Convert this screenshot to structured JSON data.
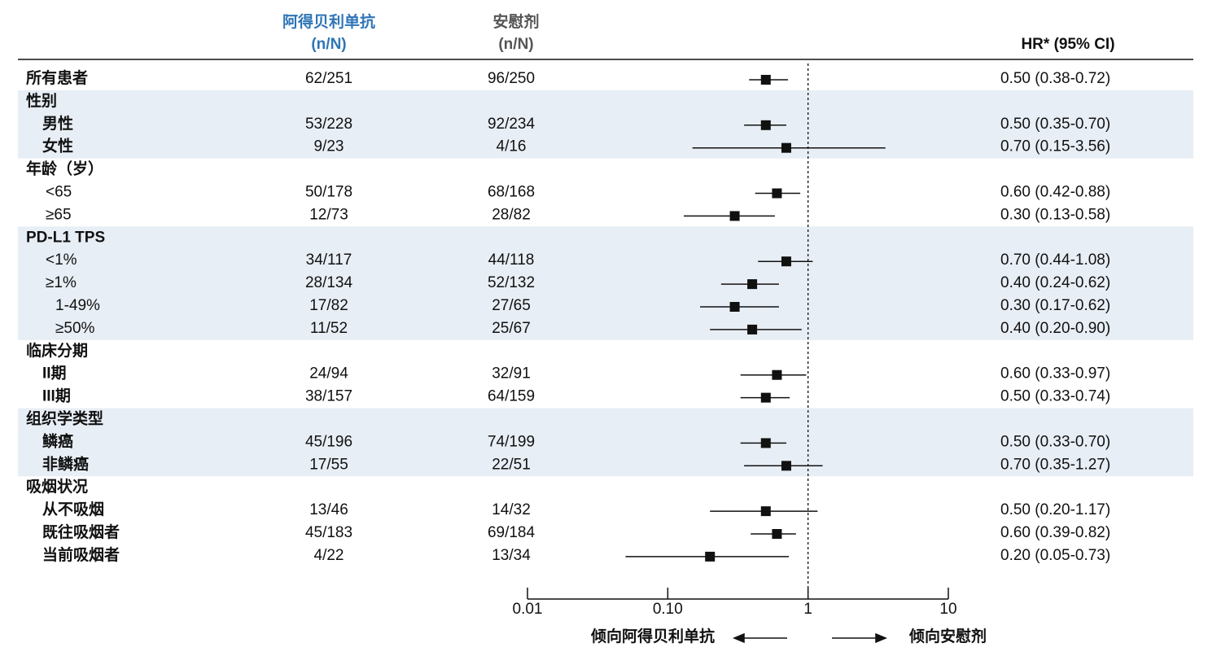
{
  "chart_data": {
    "type": "forest",
    "columns": [
      {
        "title": "阿得贝利单抗",
        "subtitle": "(n/N)",
        "color": "#2e75b6"
      },
      {
        "title": "安慰剂",
        "subtitle": "(n/N)",
        "color": "#555555"
      }
    ],
    "hr_header": "HR* (95% CI)",
    "xlim": [
      0.01,
      10
    ],
    "xticks": [
      0.01,
      {
        "value": 0.1,
        "label": "0.10"
      },
      1,
      10
    ],
    "log_x": true,
    "reference": 1,
    "left_note": "倾向阿得贝利单抗",
    "right_note": "倾向安慰剂",
    "shade_color": "#e8eef5",
    "subgroups": [
      {
        "label": "所有患者",
        "a": "62/251",
        "b": "96/250",
        "hr": 0.5,
        "lo": 0.38,
        "hi": 0.72,
        "hr_label": "0.50 (0.38-0.72)"
      },
      {
        "label": "性别",
        "rows": [
          {
            "label": "男性",
            "a": "53/228",
            "b": "92/234",
            "hr": 0.5,
            "lo": 0.35,
            "hi": 0.7,
            "hr_label": "0.50 (0.35-0.70)"
          },
          {
            "label": "女性",
            "a": "9/23",
            "b": "4/16",
            "hr": 0.7,
            "lo": 0.15,
            "hi": 3.56,
            "hr_label": "0.70 (0.15-3.56)"
          }
        ]
      },
      {
        "label": "年龄（岁）",
        "rows": [
          {
            "label": "<65",
            "a": "50/178",
            "b": "68/168",
            "hr": 0.6,
            "lo": 0.42,
            "hi": 0.88,
            "hr_label": "0.60 (0.42-0.88)"
          },
          {
            "label": "≥65",
            "a": "12/73",
            "b": "28/82",
            "hr": 0.3,
            "lo": 0.13,
            "hi": 0.58,
            "hr_label": "0.30 (0.13-0.58)"
          }
        ]
      },
      {
        "label": "PD-L1 TPS",
        "rows": [
          {
            "label": "<1%",
            "a": "34/117",
            "b": "44/118",
            "hr": 0.7,
            "lo": 0.44,
            "hi": 1.08,
            "hr_label": "0.70 (0.44-1.08)"
          },
          {
            "label": "≥1%",
            "a": "28/134",
            "b": "52/132",
            "hr": 0.4,
            "lo": 0.24,
            "hi": 0.62,
            "hr_label": "0.40 (0.24-0.62)",
            "rows": [
              {
                "label": "1-49%",
                "a": "17/82",
                "b": "27/65",
                "hr": 0.3,
                "lo": 0.17,
                "hi": 0.62,
                "hr_label": "0.30 (0.17-0.62)"
              },
              {
                "label": "≥50%",
                "a": "11/52",
                "b": "25/67",
                "hr": 0.4,
                "lo": 0.2,
                "hi": 0.9,
                "hr_label": "0.40 (0.20-0.90)"
              }
            ]
          }
        ]
      },
      {
        "label": "临床分期",
        "rows": [
          {
            "label": "II期",
            "a": "24/94",
            "b": "32/91",
            "hr": 0.6,
            "lo": 0.33,
            "hi": 0.97,
            "hr_label": "0.60 (0.33-0.97)"
          },
          {
            "label": "III期",
            "a": "38/157",
            "b": "64/159",
            "hr": 0.5,
            "lo": 0.33,
            "hi": 0.74,
            "hr_label": "0.50 (0.33-0.74)"
          }
        ]
      },
      {
        "label": "组织学类型",
        "rows": [
          {
            "label": "鳞癌",
            "a": "45/196",
            "b": "74/199",
            "hr": 0.5,
            "lo": 0.33,
            "hi": 0.7,
            "hr_label": "0.50 (0.33-0.70)"
          },
          {
            "label": "非鳞癌",
            "a": "17/55",
            "b": "22/51",
            "hr": 0.7,
            "lo": 0.35,
            "hi": 1.27,
            "hr_label": "0.70 (0.35-1.27)"
          }
        ]
      },
      {
        "label": "吸烟状况",
        "rows": [
          {
            "label": "从不吸烟",
            "a": "13/46",
            "b": "14/32",
            "hr": 0.5,
            "lo": 0.2,
            "hi": 1.17,
            "hr_label": "0.50 (0.20-1.17)"
          },
          {
            "label": "既往吸烟者",
            "a": "45/183",
            "b": "69/184",
            "hr": 0.6,
            "lo": 0.39,
            "hi": 0.82,
            "hr_label": "0.60 (0.39-0.82)"
          },
          {
            "label": "当前吸烟者",
            "a": "4/22",
            "b": "13/34",
            "hr": 0.2,
            "lo": 0.05,
            "hi": 0.73,
            "hr_label": "0.20 (0.05-0.73)"
          }
        ]
      }
    ]
  }
}
